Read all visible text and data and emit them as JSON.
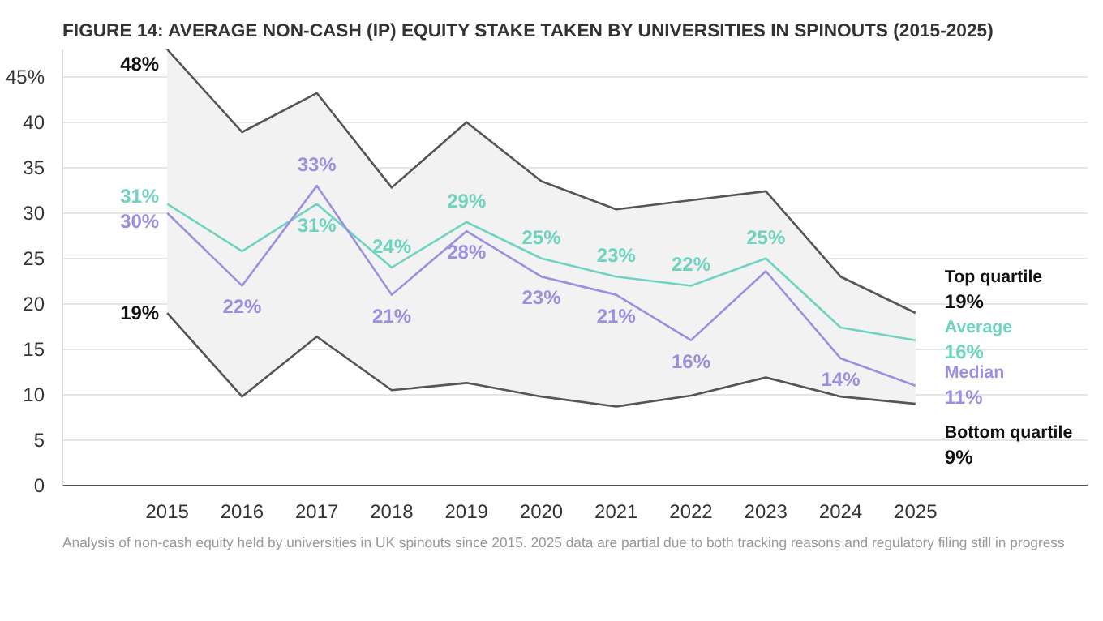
{
  "chart_data": {
    "type": "line",
    "title": "FIGURE 14: AVERAGE NON-CASH (IP) EQUITY STAKE TAKEN BY UNIVERSITIES IN SPINOUTS (2015-2025)",
    "categories": [
      "2015",
      "2016",
      "2017",
      "2018",
      "2019",
      "2020",
      "2021",
      "2022",
      "2023",
      "2024",
      "2025"
    ],
    "series": [
      {
        "name": "Top quartile",
        "color": "#555555",
        "values": [
          48,
          38.9,
          43.2,
          32.8,
          40,
          33.5,
          30.4,
          31.4,
          32.4,
          23,
          19
        ],
        "value_labels": [
          "48%",
          null,
          null,
          null,
          null,
          null,
          null,
          null,
          null,
          null,
          "19%"
        ]
      },
      {
        "name": "Average",
        "color": "#6fd3c0",
        "values": [
          31,
          25.8,
          31,
          24,
          29,
          25,
          23,
          22,
          25,
          17.4,
          16
        ],
        "lower": [
          19,
          9.8,
          16.4,
          10.5,
          11.3,
          9.8,
          8.7,
          9.9,
          11.9,
          9.8,
          9
        ],
        "upper": [
          48,
          38.9,
          43.2,
          32.8,
          40,
          33.5,
          30.4,
          31.4,
          32.4,
          23,
          19
        ],
        "value_labels": [
          "31%",
          null,
          "31%",
          "24%",
          "29%",
          "25%",
          "23%",
          "22%",
          "25%",
          null,
          "16%"
        ]
      },
      {
        "name": "Median",
        "color": "#9b8fe0",
        "values": [
          30,
          22,
          33,
          21,
          28,
          23,
          21,
          16,
          23.6,
          14,
          11
        ],
        "value_labels": [
          "30%",
          "22%",
          "33%",
          "21%",
          "28%",
          "23%",
          "21%",
          "16%",
          null,
          "14%",
          "11%"
        ]
      },
      {
        "name": "Bottom quartile",
        "color": "#555555",
        "values": [
          19,
          9.8,
          16.4,
          10.5,
          11.3,
          9.8,
          8.7,
          9.9,
          11.9,
          9.8,
          9
        ],
        "value_labels": [
          "19%",
          null,
          null,
          null,
          null,
          null,
          null,
          null,
          null,
          null,
          "9%"
        ]
      }
    ],
    "ylim": [
      0,
      48
    ],
    "yticks": [
      0,
      5,
      10,
      15,
      20,
      25,
      30,
      35,
      40,
      {
        "value": 45,
        "label": "45%"
      }
    ],
    "grid": "y",
    "legend": false,
    "line_style": "solid",
    "annotations": [
      "Analysis of non-cash equity held by universities in UK spinouts since 2015. 2025 data are partial due to both tracking reasons and regulatory filing still in progress"
    ]
  }
}
